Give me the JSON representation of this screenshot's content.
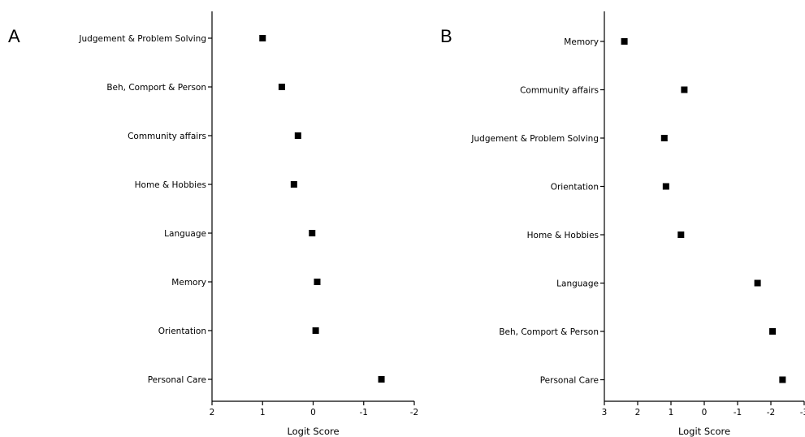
{
  "chart_data": [
    {
      "type": "scatter",
      "panel_label": "A",
      "xlabel": "Logit Score",
      "ylabel": "",
      "xlim": [
        2,
        -2
      ],
      "x_reversed": true,
      "xticks": [
        2,
        1,
        0,
        -1,
        -2
      ],
      "xtick_labels": [
        "2",
        "1",
        "0",
        "-1",
        "-2"
      ],
      "grid": false,
      "categories": [
        "Judgement & Problem Solving",
        "Beh, Comport & Person",
        "Community affairs",
        "Home & Hobbies",
        "Language",
        "Memory",
        "Orientation",
        "Personal Care"
      ],
      "values": [
        1.0,
        0.62,
        0.3,
        0.38,
        0.02,
        -0.08,
        -0.05,
        -1.35
      ]
    },
    {
      "type": "scatter",
      "panel_label": "B",
      "xlabel": "Logit Score",
      "ylabel": "",
      "xlim": [
        3,
        -3
      ],
      "x_reversed": true,
      "xticks": [
        3,
        2,
        1,
        0,
        -1,
        -2,
        -3
      ],
      "xtick_labels": [
        "3",
        "2",
        "1",
        "0",
        "-1",
        "-2",
        "-3"
      ],
      "grid": false,
      "categories": [
        "Memory",
        "Community affairs",
        "Judgement & Problem Solving",
        "Orientation",
        "Home & Hobbies",
        "Language",
        "Beh, Comport & Person",
        "Personal Care"
      ],
      "values": [
        2.4,
        0.6,
        1.2,
        1.15,
        0.7,
        -1.6,
        -2.05,
        -2.35
      ]
    }
  ]
}
